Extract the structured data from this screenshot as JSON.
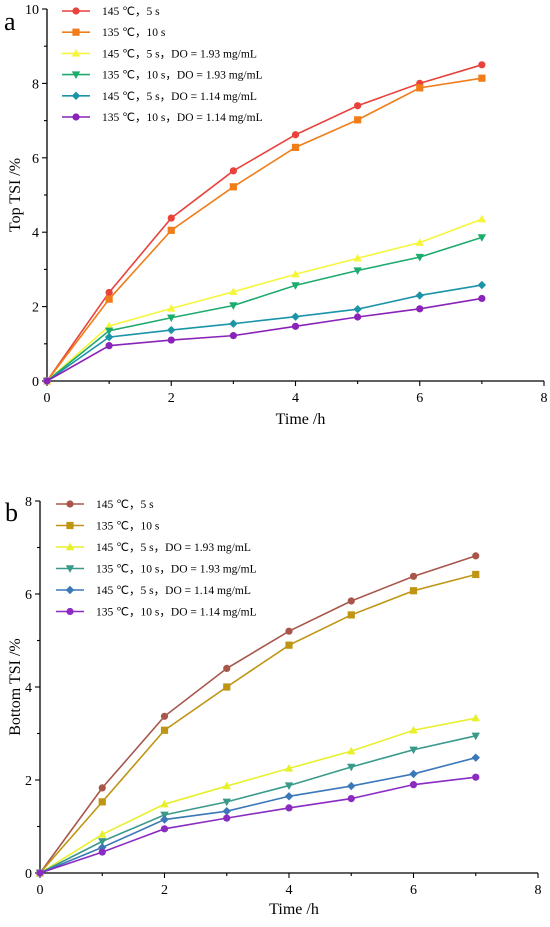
{
  "chart_data": [
    {
      "type": "line",
      "panel_label": "a",
      "xlabel": "Time /h",
      "ylabel": "Top TSI /%",
      "xlim": [
        0,
        8
      ],
      "ylim": [
        0,
        10
      ],
      "xticks": [
        0,
        2,
        4,
        6,
        8
      ],
      "yticks": [
        0,
        2,
        4,
        6,
        8,
        10
      ],
      "legend_position": "top-left",
      "x": [
        0,
        1,
        2,
        3,
        4,
        5,
        6,
        7
      ],
      "series": [
        {
          "name": "145 ℃，5 s",
          "color": "#e8423a",
          "marker": "circle",
          "values": [
            0,
            2.38,
            4.38,
            5.65,
            6.62,
            7.4,
            8.0,
            8.5
          ]
        },
        {
          "name": "135 ℃，10 s",
          "color": "#f07d1a",
          "marker": "square",
          "values": [
            0,
            2.2,
            4.05,
            5.22,
            6.28,
            7.02,
            7.88,
            8.14
          ]
        },
        {
          "name": "145 ℃，5 s，DO = 1.93 mg/mL",
          "color": "#f5f53b",
          "marker": "triangle-up",
          "values": [
            0,
            1.48,
            1.95,
            2.4,
            2.87,
            3.3,
            3.72,
            4.35
          ]
        },
        {
          "name": "135 ℃，10 s，DO = 1.93 mg/mL",
          "color": "#1eab6e",
          "marker": "triangle-down",
          "values": [
            0,
            1.35,
            1.7,
            2.03,
            2.57,
            2.97,
            3.33,
            3.86
          ]
        },
        {
          "name": "145 ℃，5 s，DO = 1.14 mg/mL",
          "color": "#1b94a8",
          "marker": "diamond",
          "values": [
            0,
            1.18,
            1.37,
            1.54,
            1.73,
            1.93,
            2.3,
            2.58
          ]
        },
        {
          "name": "135 ℃，10 s，DO = 1.14 mg/mL",
          "color": "#8a24b8",
          "marker": "circle",
          "values": [
            0,
            0.95,
            1.1,
            1.22,
            1.47,
            1.72,
            1.94,
            2.22
          ]
        }
      ]
    },
    {
      "type": "line",
      "panel_label": "b",
      "xlabel": "Time /h",
      "ylabel": "Bottom TSI /%",
      "xlim": [
        0,
        8
      ],
      "ylim": [
        0,
        8
      ],
      "xticks": [
        0,
        2,
        4,
        6,
        8
      ],
      "yticks": [
        0,
        2,
        4,
        6,
        8
      ],
      "legend_position": "top-left",
      "x": [
        0,
        1,
        2,
        3,
        4,
        5,
        6,
        7
      ],
      "series": [
        {
          "name": "145 ℃，5 s",
          "color": "#a8564a",
          "marker": "circle",
          "values": [
            0,
            1.83,
            3.37,
            4.4,
            5.2,
            5.85,
            6.38,
            6.82
          ]
        },
        {
          "name": "135 ℃，10 s",
          "color": "#bf9513",
          "marker": "square",
          "values": [
            0,
            1.53,
            3.07,
            4.0,
            4.9,
            5.55,
            6.07,
            6.42
          ]
        },
        {
          "name": "145 ℃，5 s，DO = 1.93 mg/mL",
          "color": "#e8f02b",
          "marker": "triangle-up",
          "values": [
            0,
            0.83,
            1.48,
            1.87,
            2.25,
            2.62,
            3.07,
            3.33
          ]
        },
        {
          "name": "135 ℃，10 s，DO = 1.93 mg/mL",
          "color": "#3a9a8a",
          "marker": "triangle-down",
          "values": [
            0,
            0.68,
            1.25,
            1.53,
            1.88,
            2.28,
            2.65,
            2.95
          ]
        },
        {
          "name": "145 ℃，5 s，DO = 1.14 mg/mL",
          "color": "#3a78b8",
          "marker": "diamond",
          "values": [
            0,
            0.55,
            1.15,
            1.33,
            1.65,
            1.87,
            2.13,
            2.48
          ]
        },
        {
          "name": "135 ℃，10 s，DO = 1.14 mg/mL",
          "color": "#8a2bc2",
          "marker": "circle",
          "values": [
            0,
            0.45,
            0.95,
            1.18,
            1.4,
            1.6,
            1.9,
            2.06
          ]
        }
      ]
    }
  ]
}
